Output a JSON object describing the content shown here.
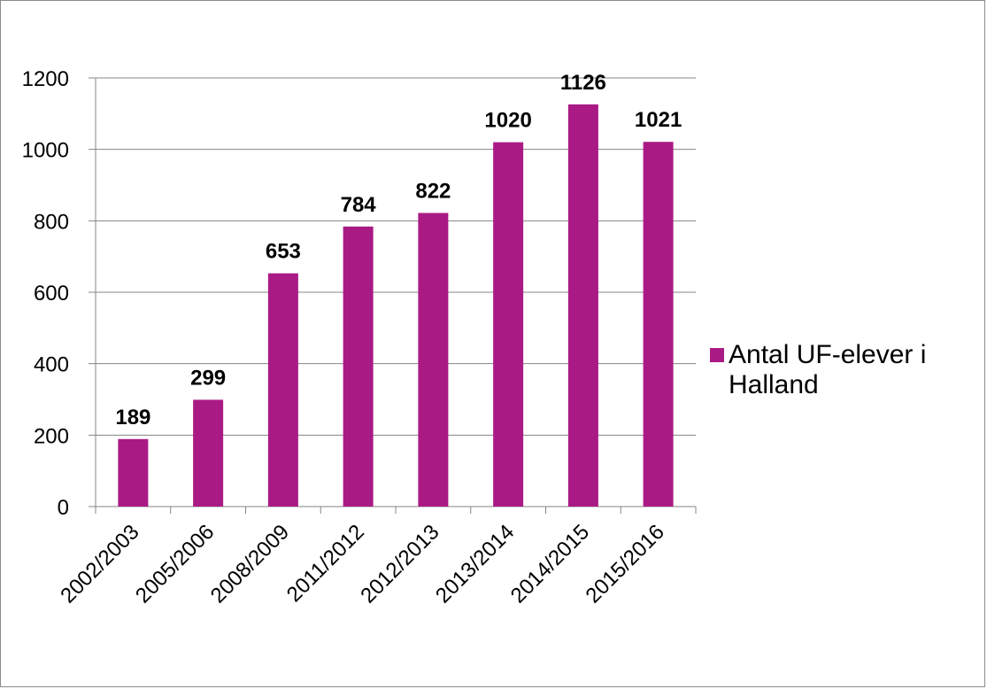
{
  "chart_data": {
    "type": "bar",
    "categories": [
      "2002/2003",
      "2005/2006",
      "2008/2009",
      "2011/2012",
      "2012/2013",
      "2013/2014",
      "2014/2015",
      "2015/2016"
    ],
    "series": [
      {
        "name": "Antal UF-elever i Halland",
        "values": [
          189,
          299,
          653,
          784,
          822,
          1020,
          1126,
          1021
        ]
      }
    ],
    "ylim": [
      0,
      1200
    ],
    "yticks": [
      0,
      200,
      400,
      600,
      800,
      1000,
      1200
    ],
    "grid": true,
    "legend_position": "right",
    "legend_lines": [
      "Antal UF-elever i",
      "Halland"
    ],
    "bar_color": "#aa1a85",
    "grid_color": "#858585"
  }
}
